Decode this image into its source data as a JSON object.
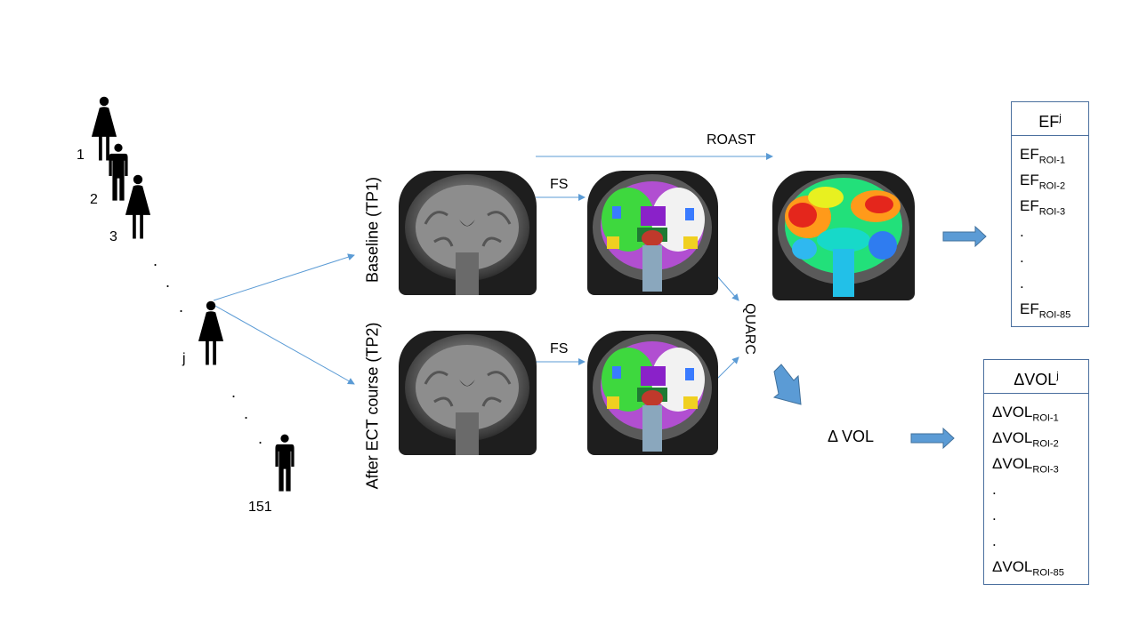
{
  "patients": {
    "labels": [
      "1",
      "2",
      "3",
      "j",
      "151"
    ],
    "ellipsis_glyph": "."
  },
  "timepoints": {
    "baseline_label": "Baseline (TP1)",
    "followup_label": "After ECT course (TP2)"
  },
  "steps": {
    "fs_top": "FS",
    "fs_bottom": "FS",
    "roast": "ROAST",
    "quarc": "QUARC",
    "delta_vol": "Δ VOL"
  },
  "ef_table": {
    "header_main": "EF",
    "header_sup": "j",
    "rows": [
      {
        "main": "EF",
        "sub": "ROI-1"
      },
      {
        "main": "EF",
        "sub": "ROI-2"
      },
      {
        "main": "EF",
        "sub": "ROI-3"
      },
      {
        "main": ".",
        "sub": ""
      },
      {
        "main": ".",
        "sub": ""
      },
      {
        "main": ".",
        "sub": ""
      },
      {
        "main": "EF",
        "sub": "ROI-85"
      }
    ]
  },
  "vol_table": {
    "header_main": "ΔVOL",
    "header_sup": "j",
    "rows": [
      {
        "main": "ΔVOL",
        "sub": "ROI-1"
      },
      {
        "main": "ΔVOL",
        "sub": "ROI-2"
      },
      {
        "main": "ΔVOL",
        "sub": "ROI-3"
      },
      {
        "main": ".",
        "sub": ""
      },
      {
        "main": ".",
        "sub": ""
      },
      {
        "main": ".",
        "sub": ""
      },
      {
        "main": "ΔVOL",
        "sub": "ROI-85"
      }
    ]
  },
  "colors": {
    "arrow": "#5b9bd5",
    "block_arrow_fill": "#5b9bd5",
    "block_arrow_stroke": "#41719c",
    "table_border": "#4a6f9e"
  }
}
